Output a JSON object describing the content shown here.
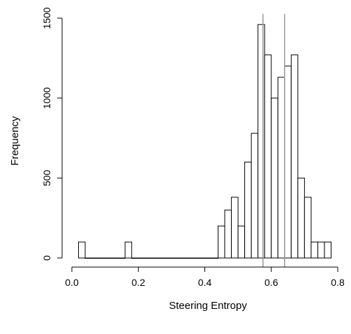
{
  "chart_data": {
    "type": "bar",
    "subtype": "histogram",
    "xlabel": "Steering Entropy",
    "ylabel": "Frequency",
    "xlim": [
      0.0,
      0.8
    ],
    "ylim": [
      0,
      1500
    ],
    "x_ticks": [
      0.0,
      0.2,
      0.4,
      0.6,
      0.8
    ],
    "x_tick_labels": [
      "0.0",
      "0.2",
      "0.4",
      "0.6",
      "0.8"
    ],
    "y_ticks": [
      0,
      500,
      1000,
      1500
    ],
    "y_tick_labels": [
      "0",
      "500",
      "1000",
      "1500"
    ],
    "bin_width": 0.02,
    "bins": [
      {
        "x0": 0.02,
        "x1": 0.04,
        "count": 100
      },
      {
        "x0": 0.04,
        "x1": 0.06,
        "count": 0
      },
      {
        "x0": 0.06,
        "x1": 0.08,
        "count": 0
      },
      {
        "x0": 0.08,
        "x1": 0.1,
        "count": 0
      },
      {
        "x0": 0.1,
        "x1": 0.12,
        "count": 0
      },
      {
        "x0": 0.12,
        "x1": 0.14,
        "count": 0
      },
      {
        "x0": 0.14,
        "x1": 0.16,
        "count": 0
      },
      {
        "x0": 0.16,
        "x1": 0.18,
        "count": 100
      },
      {
        "x0": 0.18,
        "x1": 0.2,
        "count": 0
      },
      {
        "x0": 0.2,
        "x1": 0.22,
        "count": 0
      },
      {
        "x0": 0.22,
        "x1": 0.24,
        "count": 0
      },
      {
        "x0": 0.24,
        "x1": 0.26,
        "count": 0
      },
      {
        "x0": 0.26,
        "x1": 0.28,
        "count": 0
      },
      {
        "x0": 0.28,
        "x1": 0.3,
        "count": 0
      },
      {
        "x0": 0.3,
        "x1": 0.32,
        "count": 0
      },
      {
        "x0": 0.32,
        "x1": 0.34,
        "count": 0
      },
      {
        "x0": 0.34,
        "x1": 0.36,
        "count": 0
      },
      {
        "x0": 0.36,
        "x1": 0.38,
        "count": 0
      },
      {
        "x0": 0.38,
        "x1": 0.4,
        "count": 0
      },
      {
        "x0": 0.4,
        "x1": 0.42,
        "count": 0
      },
      {
        "x0": 0.42,
        "x1": 0.44,
        "count": 0
      },
      {
        "x0": 0.44,
        "x1": 0.46,
        "count": 200
      },
      {
        "x0": 0.46,
        "x1": 0.48,
        "count": 300
      },
      {
        "x0": 0.48,
        "x1": 0.5,
        "count": 380
      },
      {
        "x0": 0.5,
        "x1": 0.52,
        "count": 200
      },
      {
        "x0": 0.52,
        "x1": 0.54,
        "count": 600
      },
      {
        "x0": 0.54,
        "x1": 0.56,
        "count": 780
      },
      {
        "x0": 0.56,
        "x1": 0.58,
        "count": 1460
      },
      {
        "x0": 0.58,
        "x1": 0.6,
        "count": 1270
      },
      {
        "x0": 0.6,
        "x1": 0.62,
        "count": 1000
      },
      {
        "x0": 0.62,
        "x1": 0.64,
        "count": 1130
      },
      {
        "x0": 0.64,
        "x1": 0.66,
        "count": 1200
      },
      {
        "x0": 0.66,
        "x1": 0.68,
        "count": 1270
      },
      {
        "x0": 0.68,
        "x1": 0.7,
        "count": 500
      },
      {
        "x0": 0.7,
        "x1": 0.72,
        "count": 380
      },
      {
        "x0": 0.72,
        "x1": 0.74,
        "count": 100
      },
      {
        "x0": 0.74,
        "x1": 0.76,
        "count": 100
      },
      {
        "x0": 0.76,
        "x1": 0.78,
        "count": 100
      }
    ],
    "reference_lines": [
      {
        "x": 0.575,
        "color": "#999999"
      },
      {
        "x": 0.64,
        "color": "#999999"
      }
    ],
    "bar_fill": "#ffffff",
    "bar_stroke": "#000000",
    "grid": false,
    "legend": "none"
  }
}
